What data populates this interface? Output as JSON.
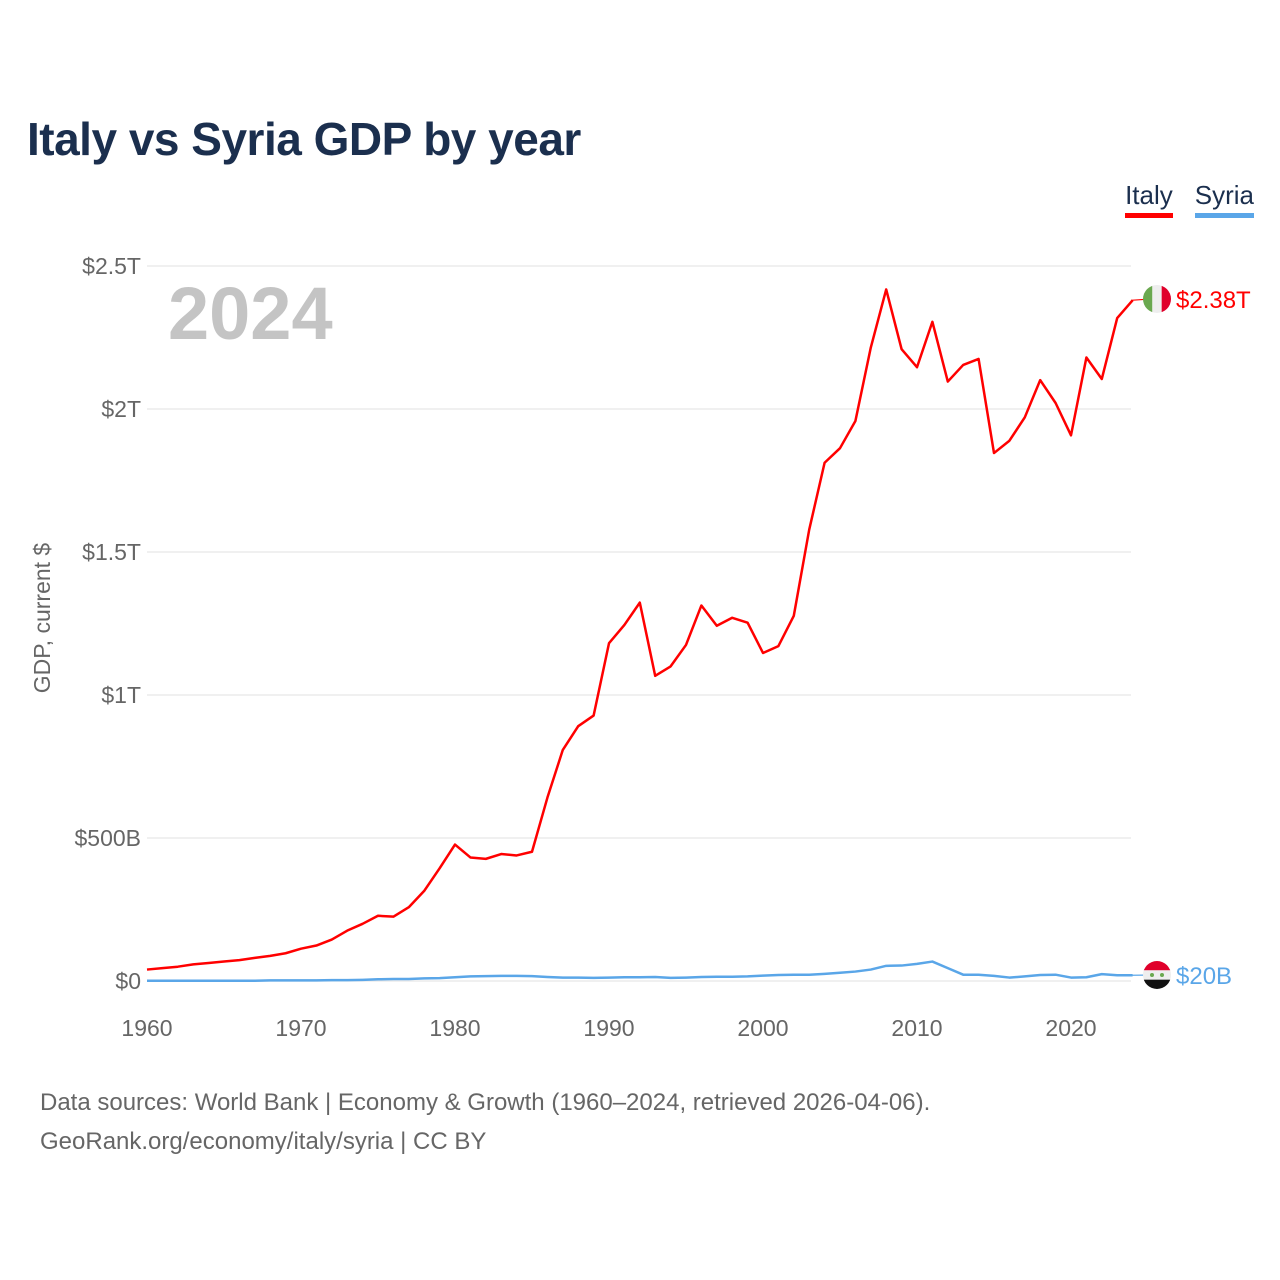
{
  "title": "Italy vs Syria GDP by year",
  "legend": [
    {
      "label": "Italy",
      "color": "#ff0000"
    },
    {
      "label": "Syria",
      "color": "#5aa6e8"
    }
  ],
  "year_watermark": "2024",
  "footer": {
    "line1": "Data sources: World Bank | Economy & Growth (1960–2024, retrieved 2026-04-06).",
    "line2": "GeoRank.org/economy/italy/syria | CC BY"
  },
  "chart_data": {
    "type": "line",
    "title": "Italy vs Syria GDP by year",
    "xlabel": "",
    "ylabel": "GDP, current $",
    "units": "billions USD",
    "xlim": [
      1960,
      2024
    ],
    "ylim": [
      0,
      2500
    ],
    "grid": true,
    "legend_position": "top-right",
    "x_ticks": [
      {
        "value": 1960,
        "label": "1960"
      },
      {
        "value": 1970,
        "label": "1970"
      },
      {
        "value": 1980,
        "label": "1980"
      },
      {
        "value": 1990,
        "label": "1990"
      },
      {
        "value": 2000,
        "label": "2000"
      },
      {
        "value": 2010,
        "label": "2010"
      },
      {
        "value": 2020,
        "label": "2020"
      }
    ],
    "y_ticks": [
      {
        "value": 0,
        "label": "$0"
      },
      {
        "value": 500,
        "label": "$500B"
      },
      {
        "value": 1000,
        "label": "$1T"
      },
      {
        "value": 1500,
        "label": "$1.5T"
      },
      {
        "value": 2000,
        "label": "$2T"
      },
      {
        "value": 2500,
        "label": "$2.5T"
      }
    ],
    "x": [
      1960,
      1961,
      1962,
      1963,
      1964,
      1965,
      1966,
      1967,
      1968,
      1969,
      1970,
      1971,
      1972,
      1973,
      1974,
      1975,
      1976,
      1977,
      1978,
      1979,
      1980,
      1981,
      1982,
      1983,
      1984,
      1985,
      1986,
      1987,
      1988,
      1989,
      1990,
      1991,
      1992,
      1993,
      1994,
      1995,
      1996,
      1997,
      1998,
      1999,
      2000,
      2001,
      2002,
      2003,
      2004,
      2005,
      2006,
      2007,
      2008,
      2009,
      2010,
      2011,
      2012,
      2013,
      2014,
      2015,
      2016,
      2017,
      2018,
      2019,
      2020,
      2021,
      2022,
      2023,
      2024
    ],
    "series": [
      {
        "name": "Italy",
        "color": "#ff0000",
        "end_label": "$2.38T",
        "flag": "italy-flag",
        "values": [
          40,
          45,
          50,
          58,
          63,
          68,
          73,
          81,
          88,
          97,
          113,
          124,
          145,
          176,
          200,
          228,
          225,
          258,
          315,
          394,
          477,
          432,
          427,
          444,
          439,
          452,
          641,
          808,
          891,
          928,
          1181,
          1245,
          1323,
          1067,
          1100,
          1175,
          1313,
          1242,
          1270,
          1253,
          1147,
          1171,
          1277,
          1578,
          1812,
          1863,
          1958,
          2215,
          2418,
          2209,
          2146,
          2305,
          2096,
          2154,
          2175,
          1846,
          1889,
          1971,
          2101,
          2021,
          1908,
          2180,
          2105,
          2318,
          2380
        ]
      },
      {
        "name": "Syria",
        "color": "#5aa6e8",
        "end_label": "$20B",
        "flag": "syria-flag",
        "values": [
          1,
          1,
          1,
          1,
          1,
          1,
          1,
          1,
          2,
          2,
          2,
          2,
          3,
          3,
          4,
          6,
          7,
          7,
          9,
          10,
          13,
          16,
          17,
          18,
          18,
          17,
          14,
          12,
          12,
          11,
          12,
          13,
          13,
          14,
          11,
          12,
          14,
          15,
          15,
          16,
          19,
          21,
          22,
          22,
          25,
          29,
          33,
          40,
          53,
          54,
          60,
          68,
          45,
          22,
          22,
          18,
          12,
          16,
          21,
          22,
          12,
          13,
          24,
          20,
          20
        ]
      }
    ]
  }
}
